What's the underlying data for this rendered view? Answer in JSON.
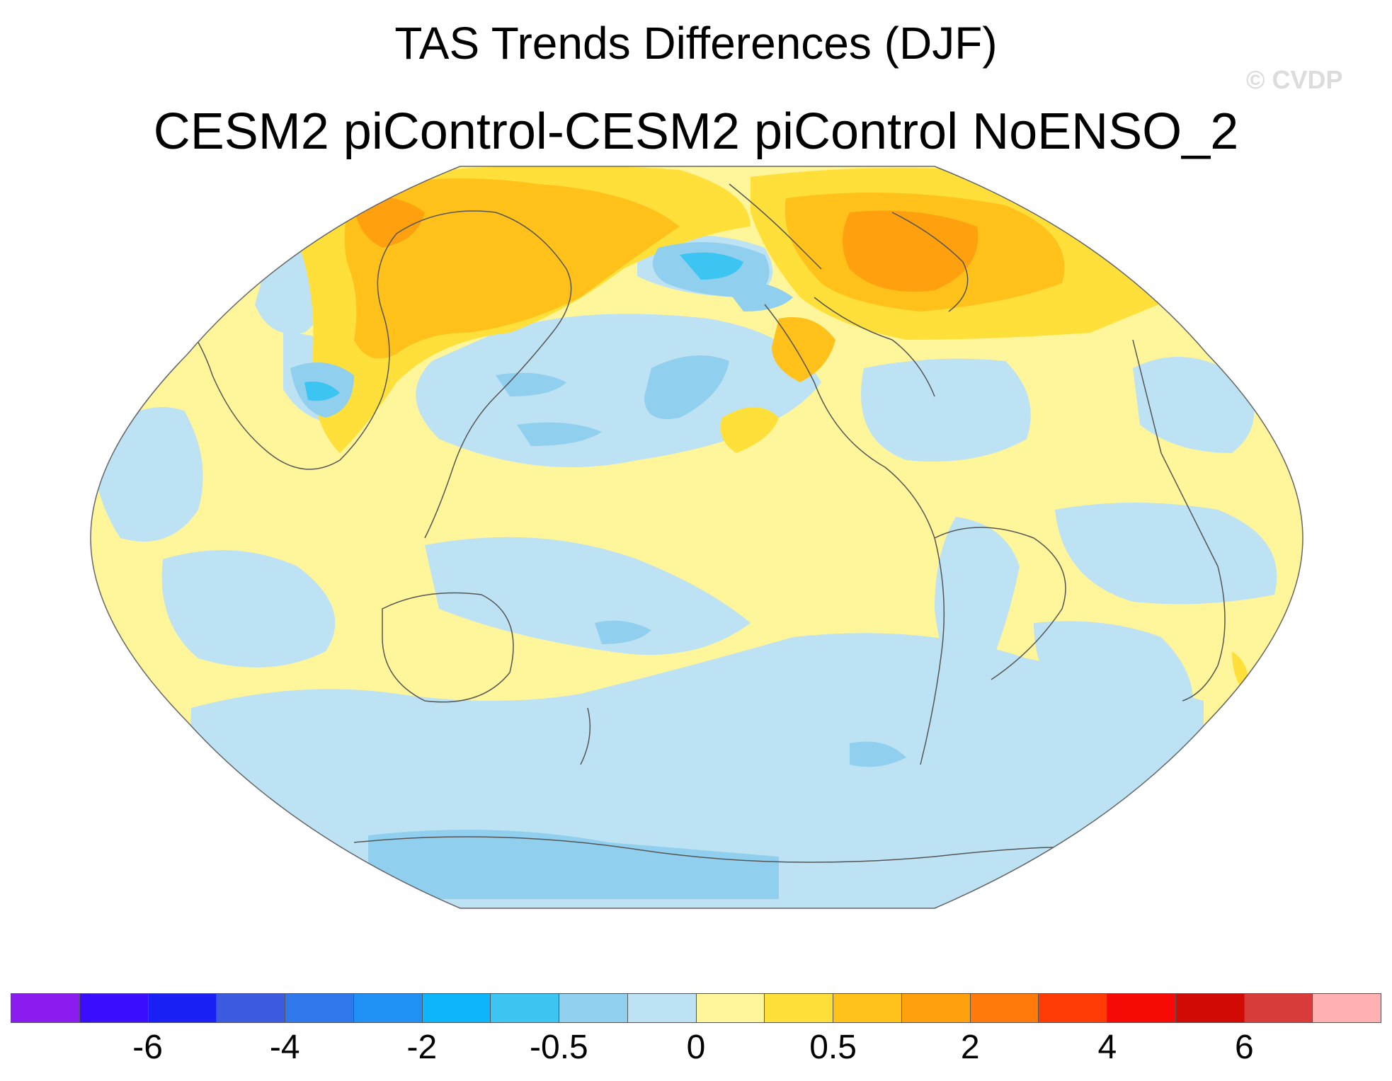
{
  "title": "TAS Trends Differences (DJF)",
  "subtitle": "CESM2 piControl-CESM2 piControl NoENSO_2",
  "watermark": "© CVDP",
  "map": {
    "projection": "Robinson",
    "center_longitude": "Pacific-centered",
    "background_color": "#FFF59A",
    "coastline_color": "#555555"
  },
  "colorbar": {
    "colors": [
      "#8B1CF0",
      "#3A0DFF",
      "#1A1FF5",
      "#3D5BE0",
      "#2F78EB",
      "#2190F5",
      "#0DB6FA",
      "#3CC4F2",
      "#90CFEE",
      "#BDE2F4",
      "#FFF59A",
      "#FFE03A",
      "#FFC11A",
      "#FFA10F",
      "#FF7A0A",
      "#FF3A05",
      "#F70A05",
      "#D20A05",
      "#D93A3A",
      "#FFB0B0"
    ],
    "labels": [
      {
        "text": "-6",
        "boundary": 2
      },
      {
        "text": "-4",
        "boundary": 4
      },
      {
        "text": "-2",
        "boundary": 6
      },
      {
        "text": "-0.5",
        "boundary": 8
      },
      {
        "text": "0",
        "boundary": 10
      },
      {
        "text": "0.5",
        "boundary": 12
      },
      {
        "text": "2",
        "boundary": 14
      },
      {
        "text": "4",
        "boundary": 16
      },
      {
        "text": "6",
        "boundary": 18
      }
    ]
  }
}
